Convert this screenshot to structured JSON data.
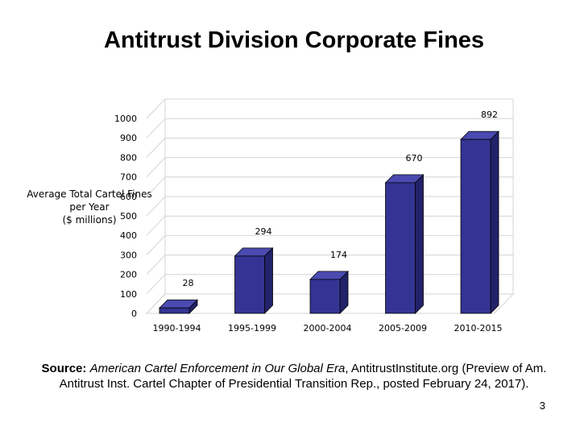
{
  "chart_data": {
    "type": "bar",
    "title": "Antitrust Division Corporate Fines",
    "ylabel_lines": [
      "Average Total Cartel Fines",
      "per Year",
      "($ millions)"
    ],
    "xlabel": "",
    "categories": [
      "1990-1994",
      "1995-1999",
      "2000-2004",
      "2005-2009",
      "2010-2015"
    ],
    "values": [
      28,
      294,
      174,
      670,
      892
    ],
    "ylim": [
      0,
      1000
    ],
    "yticks": [
      0,
      100,
      200,
      300,
      400,
      500,
      600,
      700,
      800,
      900,
      1000
    ],
    "bar_color": "#343494",
    "grid": true,
    "legend": "none"
  },
  "source": {
    "label": "Source:",
    "book_title": "American Cartel Enforcement in Our Global Era",
    "rest_line1": ", AntitrustInstitute.org (Preview of  Am.",
    "line2": "Antitrust Inst. Cartel Chapter of Presidential Transition Rep., posted February 24, 2017)."
  },
  "page_number": "3"
}
